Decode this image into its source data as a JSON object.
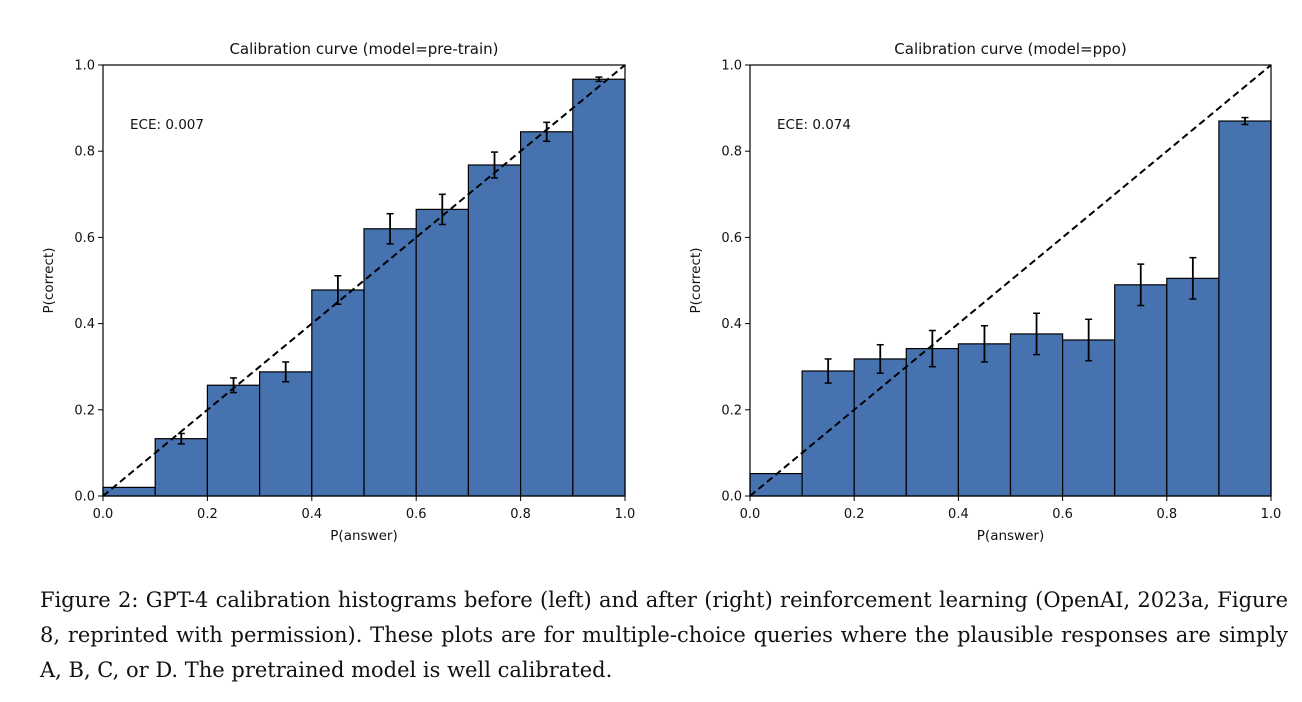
{
  "chart_data": [
    {
      "type": "bar",
      "title": "Calibration curve (model=pre-train)",
      "xlabel": "P(answer)",
      "ylabel": "P(correct)",
      "xlim": [
        0.0,
        1.0
      ],
      "ylim": [
        0.0,
        1.0
      ],
      "xticks": [
        "0.0",
        "0.2",
        "0.4",
        "0.6",
        "0.8",
        "1.0"
      ],
      "yticks": [
        "0.0",
        "0.2",
        "0.4",
        "0.6",
        "0.8",
        "1.0"
      ],
      "annotation": "ECE: 0.007",
      "bin_edges": [
        0.0,
        0.1,
        0.2,
        0.3,
        0.4,
        0.5,
        0.6,
        0.7,
        0.8,
        0.9,
        1.0
      ],
      "values": [
        0.02,
        0.133,
        0.257,
        0.288,
        0.478,
        0.62,
        0.665,
        0.768,
        0.845,
        0.967
      ],
      "error": [
        0.0,
        0.012,
        0.017,
        0.023,
        0.033,
        0.035,
        0.035,
        0.03,
        0.022,
        0.005
      ],
      "reference_line": "diagonal (perfect calibration)",
      "bar_color": "#4672b0"
    },
    {
      "type": "bar",
      "title": "Calibration curve (model=ppo)",
      "xlabel": "P(answer)",
      "ylabel": "P(correct)",
      "xlim": [
        0.0,
        1.0
      ],
      "ylim": [
        0.0,
        1.0
      ],
      "xticks": [
        "0.0",
        "0.2",
        "0.4",
        "0.6",
        "0.8",
        "1.0"
      ],
      "yticks": [
        "0.0",
        "0.2",
        "0.4",
        "0.6",
        "0.8",
        "1.0"
      ],
      "annotation": "ECE: 0.074",
      "bin_edges": [
        0.0,
        0.1,
        0.2,
        0.3,
        0.4,
        0.5,
        0.6,
        0.7,
        0.8,
        0.9,
        1.0
      ],
      "values": [
        0.052,
        0.29,
        0.318,
        0.342,
        0.353,
        0.376,
        0.362,
        0.49,
        0.505,
        0.87
      ],
      "error": [
        0.0,
        0.028,
        0.033,
        0.042,
        0.042,
        0.048,
        0.048,
        0.048,
        0.048,
        0.008
      ],
      "reference_line": "diagonal (perfect calibration)",
      "bar_color": "#4672b0"
    }
  ],
  "caption": {
    "line1": "Figure 2:  GPT-4 calibration histograms before (left) and after (right) reinforcement learning",
    "line2": "(OpenAI, 2023a, Figure 8, reprinted with permission). These plots are for multiple-choice queries",
    "line3": "where the plausible responses are simply A, B, C, or D. The pretrained model is well calibrated."
  }
}
